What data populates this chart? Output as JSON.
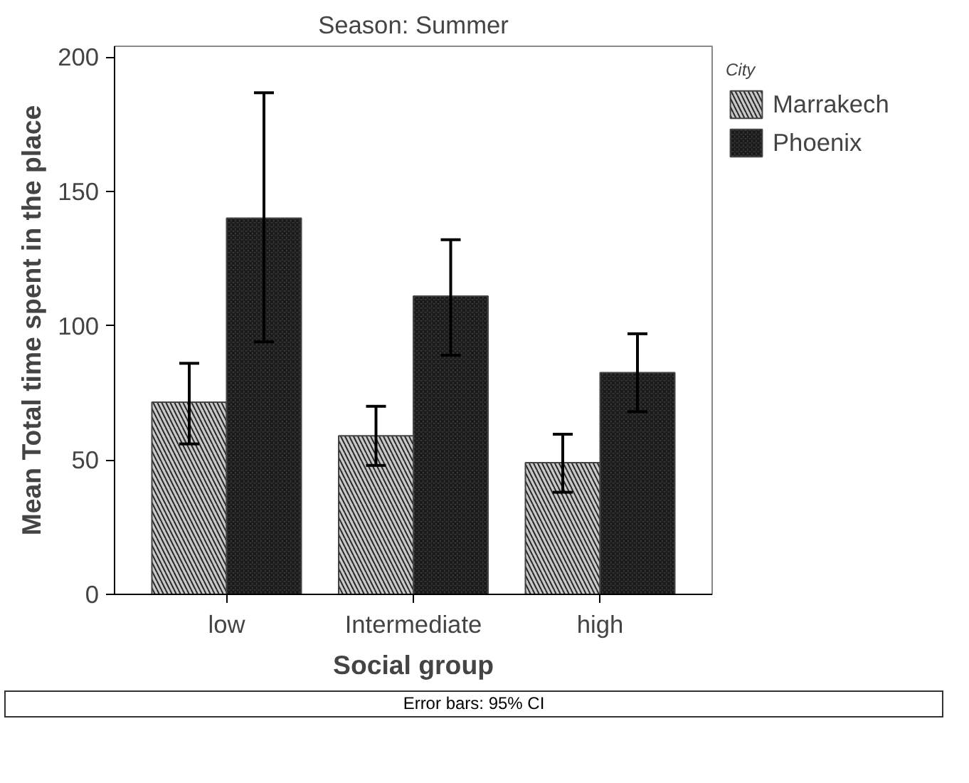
{
  "chart_data": {
    "type": "bar",
    "title": "Season: Summer",
    "xlabel": "Social group",
    "ylabel": "Mean Total time spent in the place",
    "legend_title": "City",
    "legend": "top right",
    "grid": false,
    "categories": [
      "low",
      "Intermediate",
      "high"
    ],
    "series": [
      {
        "name": "Marrakech",
        "color": "#c8c8c8",
        "values": [
          71.5,
          59,
          49
        ],
        "errors": [
          [
            56,
            86
          ],
          [
            48,
            70
          ],
          [
            38,
            59.6
          ]
        ]
      },
      {
        "name": "Phoenix",
        "color": "#333333",
        "values": [
          140,
          111,
          82.5
        ],
        "errors": [
          [
            94,
            186.7
          ],
          [
            89,
            132
          ],
          [
            68,
            97
          ]
        ]
      }
    ],
    "ylim": [
      0,
      204
    ],
    "yticks": [
      0,
      50,
      100,
      150,
      200
    ],
    "annotations": [
      "Error bars: 95% CI"
    ]
  }
}
